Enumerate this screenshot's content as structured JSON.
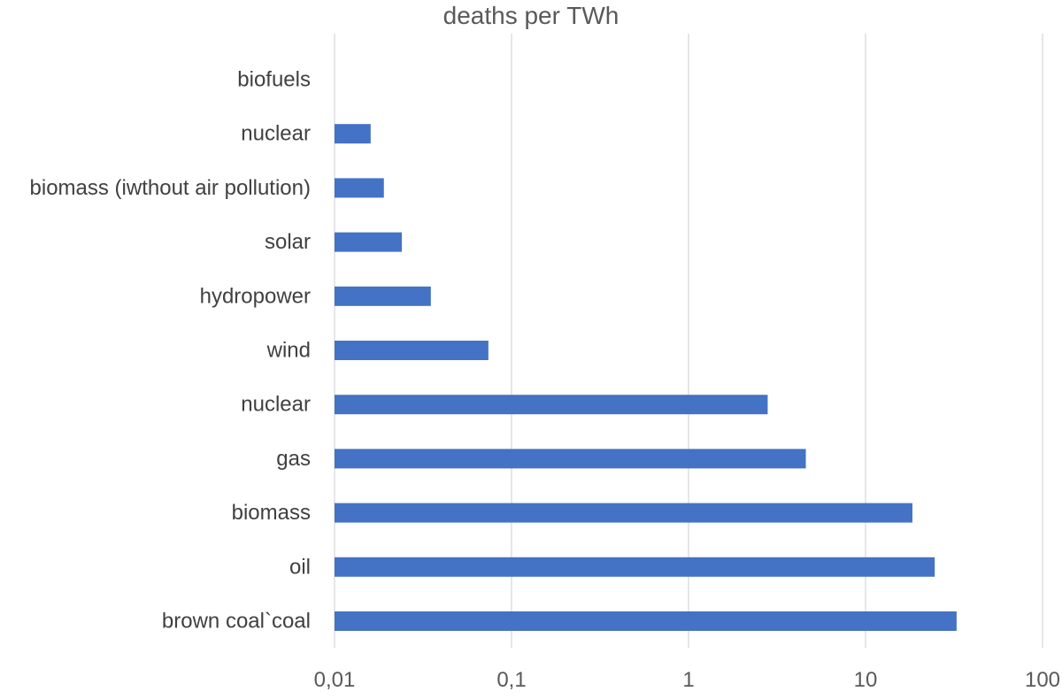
{
  "chart_data": {
    "type": "bar",
    "orientation": "horizontal",
    "title": "deaths per TWh",
    "xlabel": "",
    "ylabel": "",
    "xscale": "log",
    "xlim": [
      0.01,
      100
    ],
    "x_ticks": [
      0.01,
      0.1,
      1,
      10,
      100
    ],
    "x_tick_labels": [
      "0,01",
      "0,1",
      "1",
      "10",
      "100"
    ],
    "categories": [
      "biofuels",
      "nuclear",
      "biomass (iwthout air pollution)",
      "solar",
      "hydropower",
      "wind",
      "nuclear",
      "gas",
      "biomass",
      "oil",
      "brown coal`coal"
    ],
    "values": [
      null,
      0.016,
      0.019,
      0.024,
      0.035,
      0.074,
      2.8,
      4.6,
      18.4,
      24.6,
      32.7
    ],
    "grid": "vertical",
    "legend": "none",
    "bar_color": "#4472C4"
  }
}
